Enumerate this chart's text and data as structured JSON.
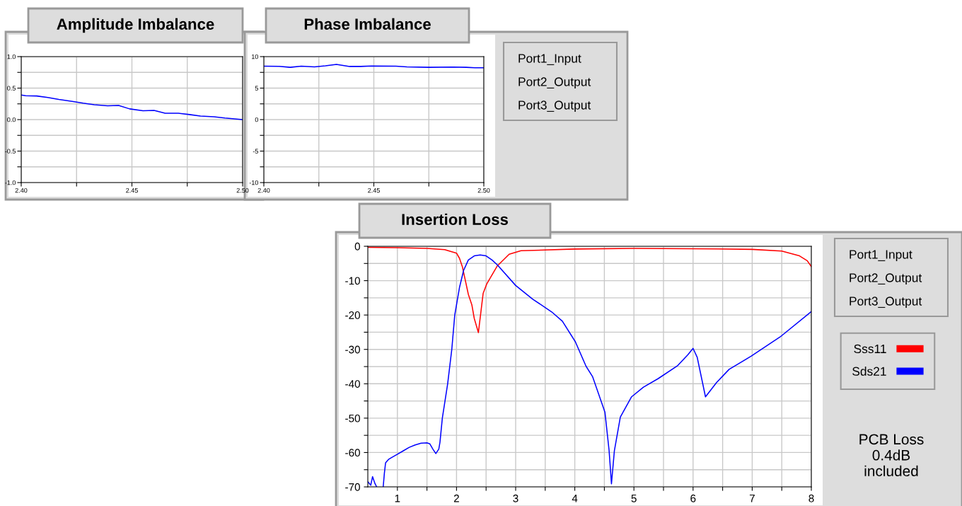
{
  "chart_data": [
    {
      "type": "line",
      "title": "Amplitude Imbalance",
      "xlim": [
        2.4,
        2.5
      ],
      "ylim": [
        -1.0,
        1.0
      ],
      "grid": true,
      "legend": false,
      "marker": "none",
      "line_style": "solid",
      "xticks": [
        {
          "value": 2.4,
          "label": "2.40"
        },
        {
          "value": 2.425,
          "label": null
        },
        {
          "value": 2.45,
          "label": "2.45"
        },
        {
          "value": 2.475,
          "label": null
        },
        {
          "value": 2.5,
          "label": "2.50"
        }
      ],
      "yticks": [
        {
          "value": -1.0,
          "label": "-1.0"
        },
        {
          "value": -0.75,
          "label": null
        },
        {
          "value": -0.5,
          "label": "-0.5"
        },
        {
          "value": -0.25,
          "label": null
        },
        {
          "value": 0,
          "label": "0.0"
        },
        {
          "value": 0.25,
          "label": null
        },
        {
          "value": 0.5,
          "label": "0.5"
        },
        {
          "value": 0.75,
          "label": null
        },
        {
          "value": 1.0,
          "label": "1.0"
        }
      ],
      "series": [
        {
          "color": "#0000ff",
          "x": [
            2.4,
            2.402,
            2.407,
            2.412,
            2.417,
            2.423,
            2.428,
            2.433,
            2.439,
            2.444,
            2.449,
            2.455,
            2.46,
            2.465,
            2.471,
            2.476,
            2.481,
            2.487,
            2.492,
            2.5
          ],
          "values": [
            0.39,
            0.38,
            0.375,
            0.35,
            0.32,
            0.29,
            0.26,
            0.235,
            0.22,
            0.225,
            0.17,
            0.14,
            0.145,
            0.1,
            0.1,
            0.08,
            0.055,
            0.045,
            0.025,
            0.0
          ]
        }
      ]
    },
    {
      "type": "line",
      "title": "Phase Imbalance",
      "xlim": [
        2.4,
        2.5
      ],
      "ylim": [
        -10,
        10
      ],
      "grid": true,
      "legend": false,
      "marker": "none",
      "line_style": "solid",
      "xticks": [
        {
          "value": 2.4,
          "label": "2.40"
        },
        {
          "value": 2.425,
          "label": null
        },
        {
          "value": 2.45,
          "label": "2.45"
        },
        {
          "value": 2.475,
          "label": null
        },
        {
          "value": 2.5,
          "label": "2.50"
        }
      ],
      "yticks": [
        {
          "value": -10,
          "label": "-10"
        },
        {
          "value": -7.5,
          "label": null
        },
        {
          "value": -5,
          "label": "-5"
        },
        {
          "value": -2.5,
          "label": null
        },
        {
          "value": 0,
          "label": "0"
        },
        {
          "value": 2.5,
          "label": null
        },
        {
          "value": 5,
          "label": "5"
        },
        {
          "value": 7.5,
          "label": null
        },
        {
          "value": 10,
          "label": "10"
        }
      ],
      "annotations": [
        "Port1_Input",
        "Port2_Output",
        "Port3_Output"
      ],
      "series": [
        {
          "color": "#0000ff",
          "x": [
            2.4,
            2.407,
            2.412,
            2.417,
            2.423,
            2.428,
            2.433,
            2.439,
            2.444,
            2.449,
            2.46,
            2.465,
            2.475,
            2.486,
            2.492,
            2.496,
            2.5
          ],
          "values": [
            8.48,
            8.46,
            8.3,
            8.48,
            8.36,
            8.54,
            8.76,
            8.44,
            8.44,
            8.5,
            8.48,
            8.38,
            8.3,
            8.34,
            8.3,
            8.24,
            8.24
          ]
        }
      ]
    },
    {
      "type": "line",
      "title": "Insertion Loss",
      "xlim": [
        0.5,
        8
      ],
      "ylim": [
        -70,
        0
      ],
      "grid": true,
      "legend": "right",
      "marker": "none",
      "line_style": "solid",
      "xticks": [
        {
          "value": 1,
          "label": "1"
        },
        {
          "value": 1.5,
          "label": null
        },
        {
          "value": 2,
          "label": "2"
        },
        {
          "value": 2.5,
          "label": null
        },
        {
          "value": 3,
          "label": "3"
        },
        {
          "value": 3.5,
          "label": null
        },
        {
          "value": 4,
          "label": "4"
        },
        {
          "value": 4.5,
          "label": null
        },
        {
          "value": 5,
          "label": "5"
        },
        {
          "value": 5.5,
          "label": null
        },
        {
          "value": 6,
          "label": "6"
        },
        {
          "value": 6.5,
          "label": null
        },
        {
          "value": 7,
          "label": "7"
        },
        {
          "value": 7.5,
          "label": null
        },
        {
          "value": 8,
          "label": "8"
        }
      ],
      "yticks": [
        {
          "value": -70,
          "label": "-70"
        },
        {
          "value": -65,
          "label": null
        },
        {
          "value": -60,
          "label": "-60"
        },
        {
          "value": -55,
          "label": null
        },
        {
          "value": -50,
          "label": "-50"
        },
        {
          "value": -45,
          "label": null
        },
        {
          "value": -40,
          "label": "-40"
        },
        {
          "value": -35,
          "label": null
        },
        {
          "value": -30,
          "label": "-30"
        },
        {
          "value": -25,
          "label": null
        },
        {
          "value": -20,
          "label": "-20"
        },
        {
          "value": -15,
          "label": null
        },
        {
          "value": -10,
          "label": "-10"
        },
        {
          "value": -5,
          "label": null
        },
        {
          "value": 0,
          "label": "0"
        }
      ],
      "annotations": [
        "Port1_Input",
        "Port2_Output",
        "Port3_Output",
        "PCB Loss\n0.4dB\nincluded"
      ],
      "series": [
        {
          "name": "Sss11",
          "color": "#ff0000",
          "x": [
            0.5,
            1,
            1.5,
            1.8,
            2.0,
            2.05,
            2.1,
            2.15,
            2.2,
            2.26,
            2.3,
            2.37,
            2.45,
            2.51,
            2.69,
            2.89,
            3.09,
            4,
            5,
            6,
            7,
            7.5,
            7.8,
            7.93,
            8
          ],
          "values": [
            -0.3,
            -0.4,
            -0.6,
            -1.0,
            -2.0,
            -3.5,
            -6,
            -10,
            -14,
            -17.1,
            -21,
            -25.1,
            -13.7,
            -11,
            -5.7,
            -2.3,
            -1.3,
            -0.8,
            -0.6,
            -0.7,
            -0.9,
            -1.4,
            -2.8,
            -4.2,
            -5.9
          ]
        },
        {
          "name": "Sds21",
          "color": "#0000ff",
          "x": [
            0.5,
            0.55,
            0.58,
            0.62,
            0.65,
            0.7,
            0.76,
            0.78,
            0.8,
            0.85,
            0.9,
            1.0,
            1.1,
            1.2,
            1.3,
            1.4,
            1.5,
            1.55,
            1.6,
            1.65,
            1.7,
            1.72,
            1.76,
            1.85,
            1.92,
            1.97,
            2.05,
            2.12,
            2.2,
            2.3,
            2.4,
            2.5,
            2.6,
            2.69,
            3.0,
            3.29,
            3.61,
            3.79,
            4.01,
            4.19,
            4.3,
            4.51,
            4.58,
            4.62,
            4.67,
            4.77,
            4.96,
            5.16,
            5.41,
            5.74,
            5.91,
            6.0,
            6.07,
            6.21,
            6.4,
            6.61,
            6.98,
            7.47,
            8.0
          ],
          "values": [
            -68.5,
            -69.5,
            -67,
            -69,
            -70,
            null,
            -70,
            -66,
            -63,
            -62,
            -61.5,
            -60.5,
            -59.5,
            -58.5,
            -57.8,
            -57.3,
            -57.2,
            -57.5,
            -59,
            -60.3,
            -59,
            -57,
            -50,
            -40,
            -30,
            -20,
            -12,
            -7,
            -4,
            -2.8,
            -2.5,
            -2.8,
            -4,
            -5.4,
            -11.4,
            -15.4,
            -19.1,
            -21.8,
            -27.8,
            -34.9,
            -37.9,
            -48.3,
            -59.4,
            -69.1,
            -59.4,
            -49.7,
            -43.8,
            -41,
            -38.5,
            -34.7,
            -31.6,
            -29.7,
            -32.3,
            -43.8,
            -39.6,
            -35.8,
            -32,
            -26.4,
            -19
          ]
        }
      ]
    }
  ]
}
